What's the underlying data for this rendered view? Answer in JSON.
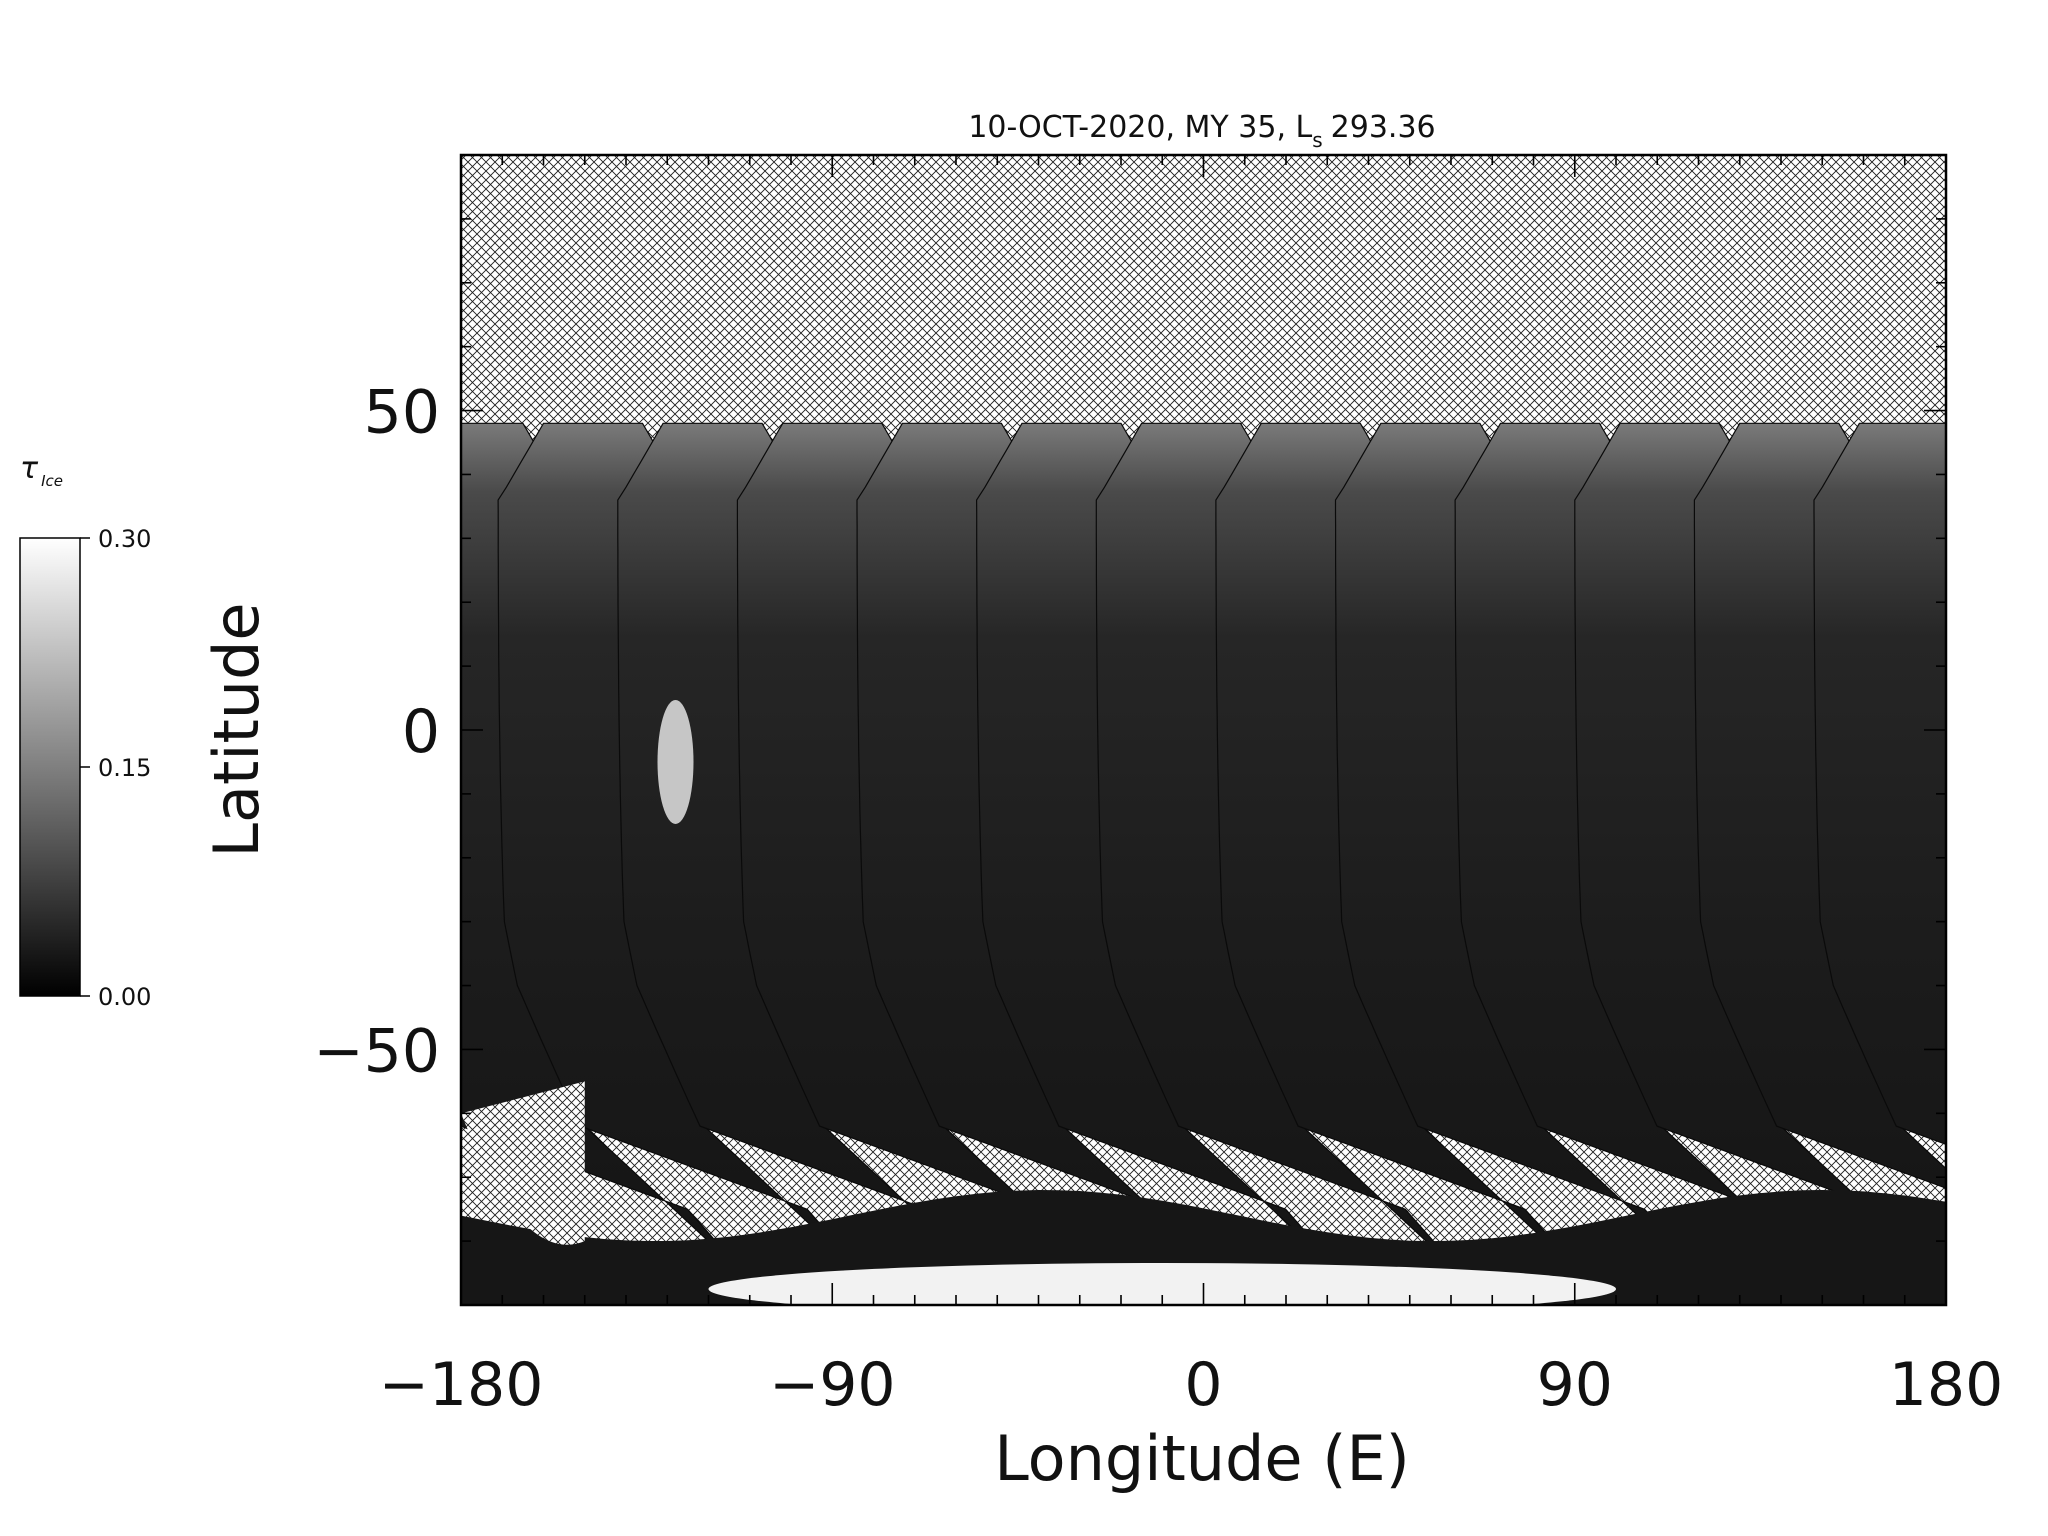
{
  "chart_data": {
    "type": "heatmap",
    "title": "10-OCT-2020, MY 35,  L",
    "title_subscript": "s",
    "title_value": "293.36",
    "xlabel": "Longitude (E)",
    "ylabel": "Latitude",
    "xlim": [
      -180,
      180
    ],
    "ylim": [
      -90,
      90
    ],
    "x_ticks": [
      -180,
      -90,
      0,
      90,
      180
    ],
    "x_tick_labels": [
      "−180",
      "−90",
      "0",
      "90",
      "180"
    ],
    "y_ticks": [
      -50,
      0,
      50
    ],
    "y_tick_labels": [
      "−50",
      "0",
      "50"
    ],
    "grid": false,
    "no_data_pattern": "crosshatch",
    "colorbar": {
      "label": "τ",
      "label_subscript": "Ice",
      "min": 0.0,
      "max": 0.3,
      "ticks": [
        0.0,
        0.15,
        0.3
      ],
      "tick_labels": [
        "0.00",
        "0.15",
        "0.30"
      ],
      "colormap": "grayscale",
      "placement": "left"
    },
    "swaths": {
      "count": 13,
      "center_longitudes_at_equator": [
        -171,
        -142,
        -113,
        -84,
        -55,
        -26,
        3,
        32,
        61,
        90,
        119,
        148,
        177
      ],
      "north_limit_latitude": 48,
      "south_limit_latitude": -88
    },
    "features": [
      {
        "label": "bright ice cloud near equator",
        "lon": -128,
        "lat": -5,
        "tau_ice": 0.28
      },
      {
        "label": "bright south polar region",
        "lon": -10,
        "lat": -84,
        "tau_ice": 0.3
      }
    ]
  },
  "colors": {
    "background": "#ffffff",
    "axes": "#000000",
    "swath_dark": "#151515",
    "swath_mid": "#3a3a3a",
    "bright": "#f2f2f2"
  }
}
